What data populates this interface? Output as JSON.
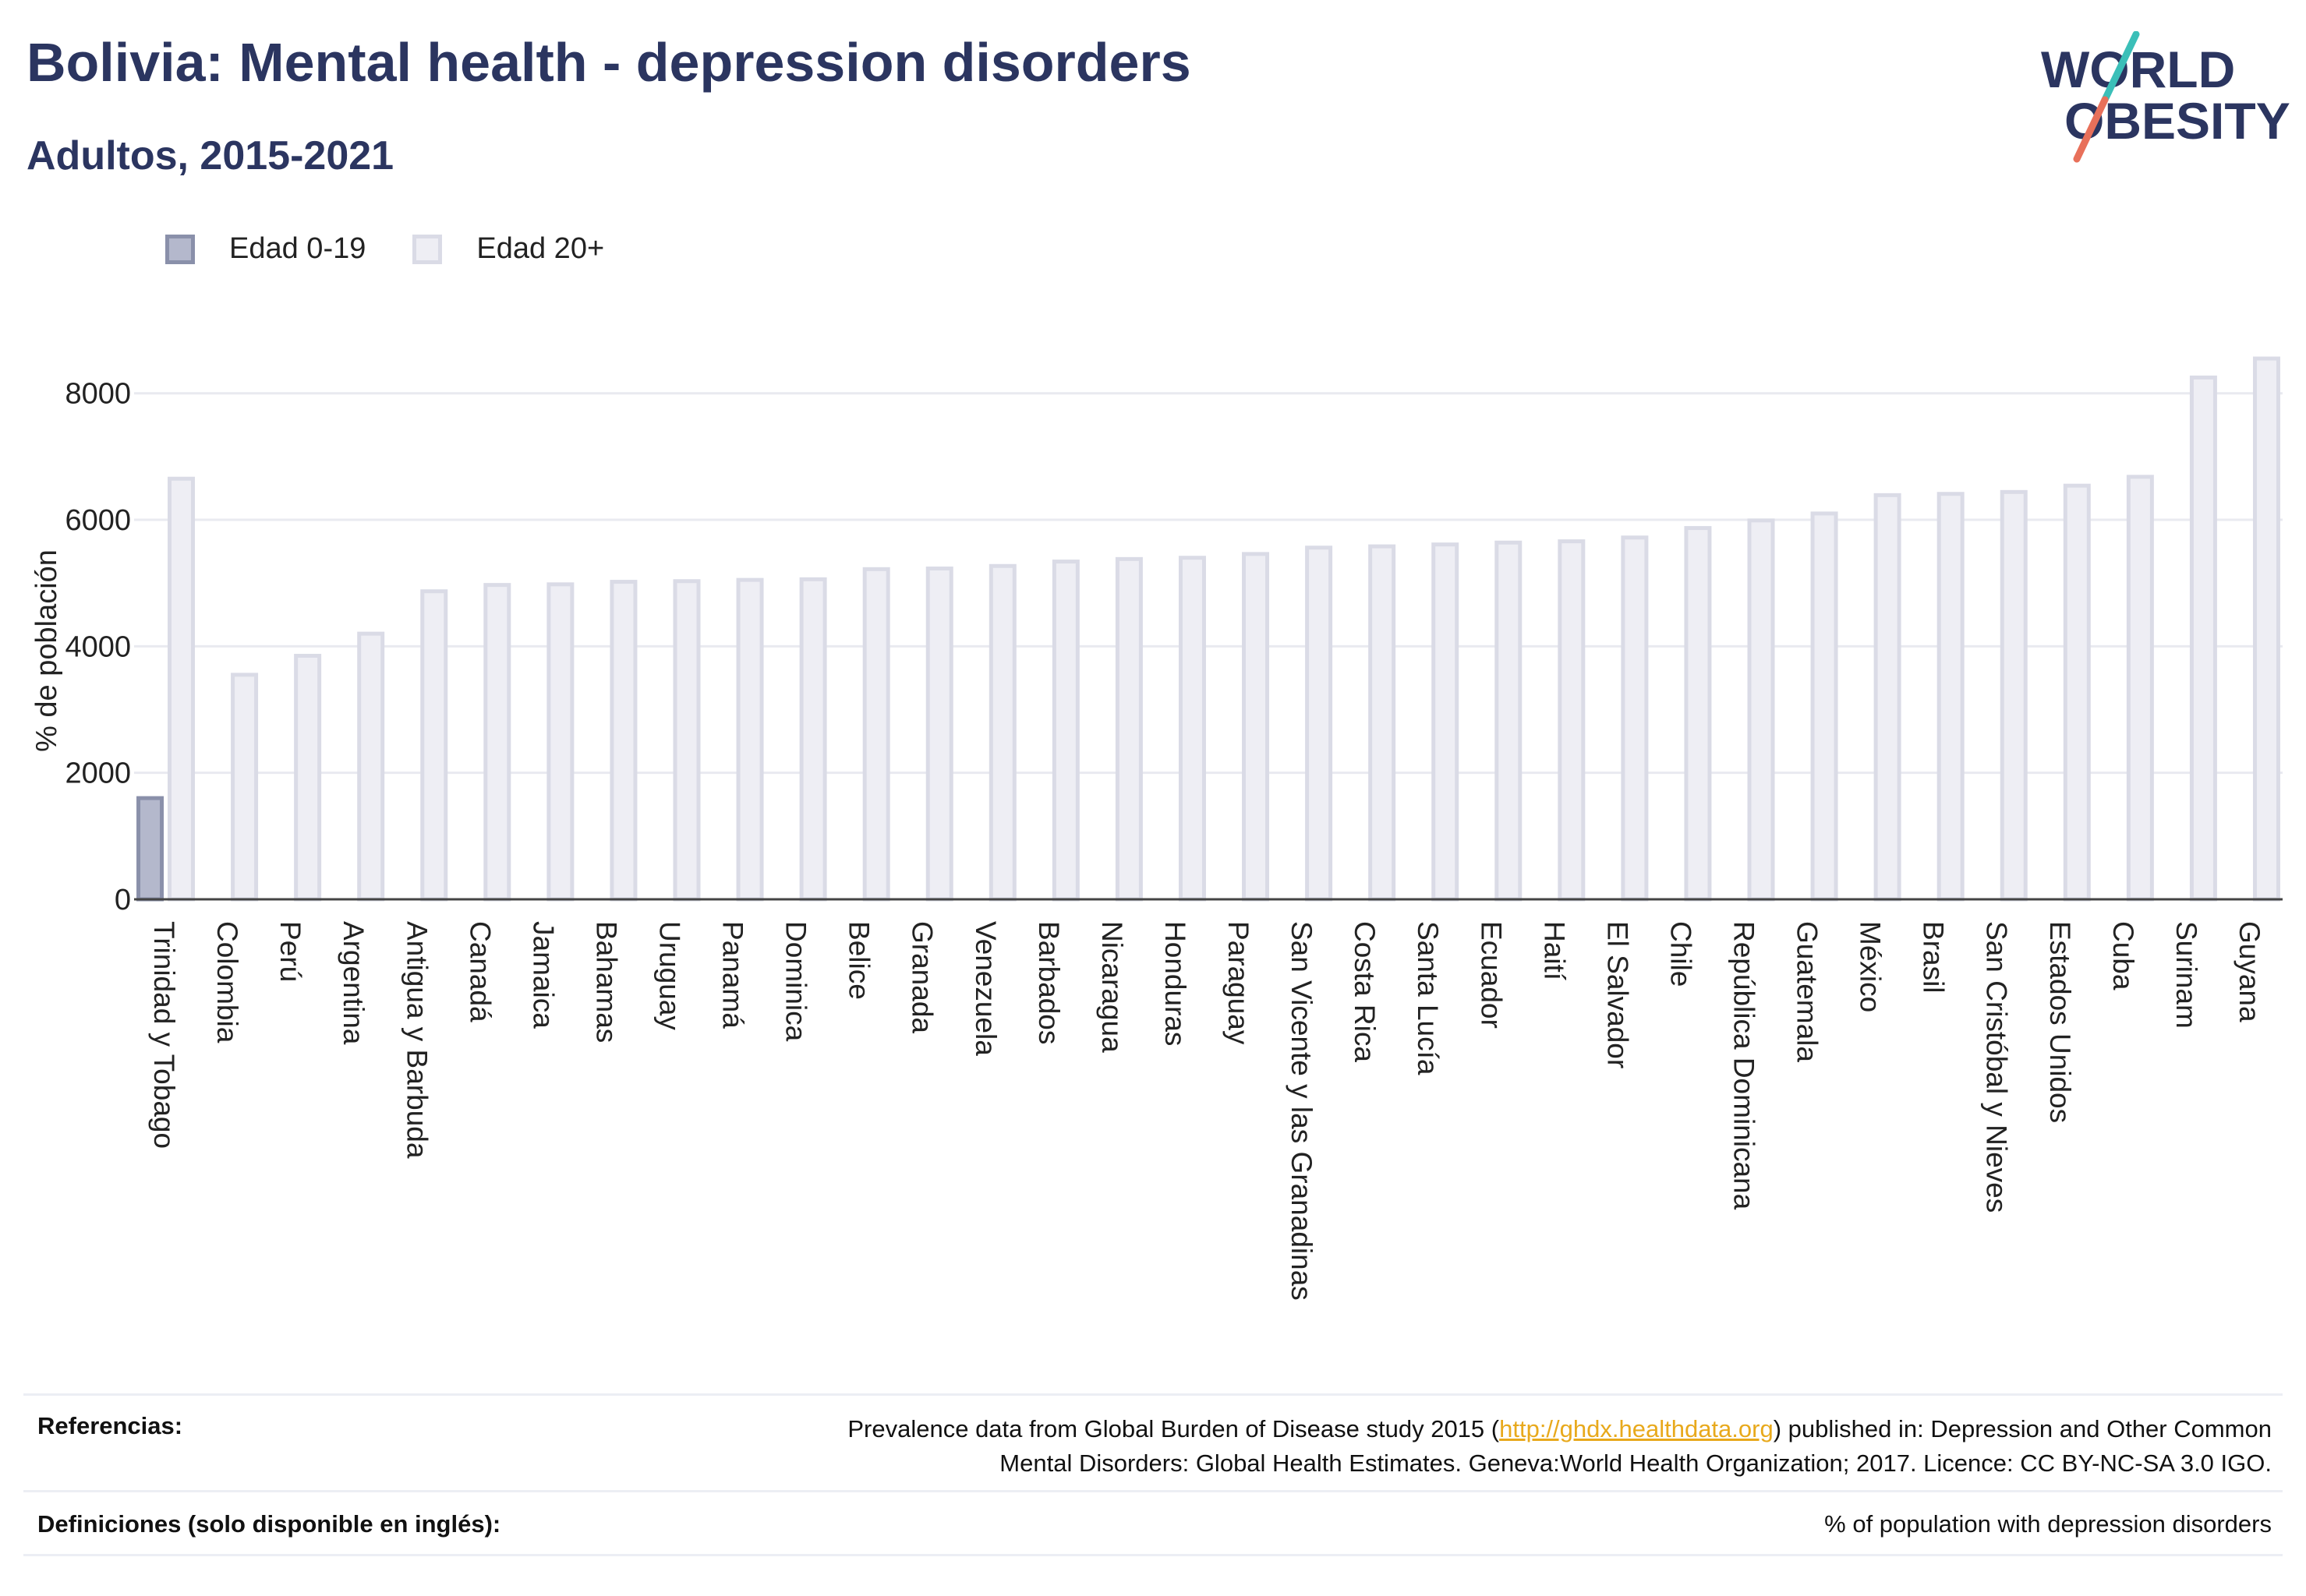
{
  "header": {
    "title": "Bolivia: Mental health - depression disorders",
    "subtitle": "Adultos, 2015-2021"
  },
  "logo": {
    "line1": "WORLD",
    "line2": "OBESITY",
    "colors": {
      "text": "#2b3560",
      "slash_top": "#3bbfb8",
      "slash_bottom": "#e8705a"
    }
  },
  "legend": [
    {
      "label": "Edad 0-19",
      "color": "#b4b8cc"
    },
    {
      "label": "Edad 20+",
      "color": "#eeeef4"
    }
  ],
  "chart_data": {
    "type": "bar",
    "ylabel": "% de población",
    "ylim": [
      0,
      8600
    ],
    "yticks": [
      0,
      2000,
      4000,
      6000,
      8000
    ],
    "grid": true,
    "legend_position": "top-left",
    "categories": [
      "Trinidad y Tobago",
      "Colombia",
      "Perú",
      "Argentina",
      "Antigua y Barbuda",
      "Canadá",
      "Jamaica",
      "Bahamas",
      "Uruguay",
      "Panamá",
      "Dominica",
      "Belice",
      "Granada",
      "Venezuela",
      "Barbados",
      "Nicaragua",
      "Honduras",
      "Paraguay",
      "San Vicente y las Granadinas",
      "Costa Rica",
      "Santa Lucía",
      "Ecuador",
      "Haití",
      "El Salvador",
      "Chile",
      "República Dominicana",
      "Guatemala",
      "México",
      "Brasil",
      "San Cristóbal y Nieves",
      "Estados Unidos",
      "Cuba",
      "Surinam",
      "Guyana"
    ],
    "series": [
      {
        "name": "Edad 0-19",
        "values": [
          1600,
          null,
          null,
          null,
          null,
          null,
          null,
          null,
          null,
          null,
          null,
          null,
          null,
          null,
          null,
          null,
          null,
          null,
          null,
          null,
          null,
          null,
          null,
          null,
          null,
          null,
          null,
          null,
          null,
          null,
          null,
          null,
          null,
          null
        ]
      },
      {
        "name": "Edad 20+",
        "values": [
          6650,
          3550,
          3850,
          4200,
          4870,
          4970,
          4980,
          5020,
          5030,
          5050,
          5060,
          5220,
          5230,
          5270,
          5340,
          5380,
          5400,
          5460,
          5560,
          5580,
          5610,
          5640,
          5660,
          5720,
          5870,
          5990,
          6100,
          6390,
          6410,
          6440,
          6540,
          6680,
          8250,
          8550
        ]
      }
    ]
  },
  "footer": {
    "references_label": "Referencias:",
    "references_text_1": "Prevalence data from Global Burden of Disease study 2015 (",
    "references_link": "http://ghdx.healthdata.org",
    "references_text_2": ") published in: Depression and Other Common",
    "references_text_3": "Mental Disorders: Global Health Estimates. Geneva:World Health Organization; 2017. Licence: CC BY-NC-SA 3.0 IGO.",
    "definitions_label": "Definiciones (solo disponible en inglés):",
    "definitions_text": "% of population with depression disorders"
  }
}
